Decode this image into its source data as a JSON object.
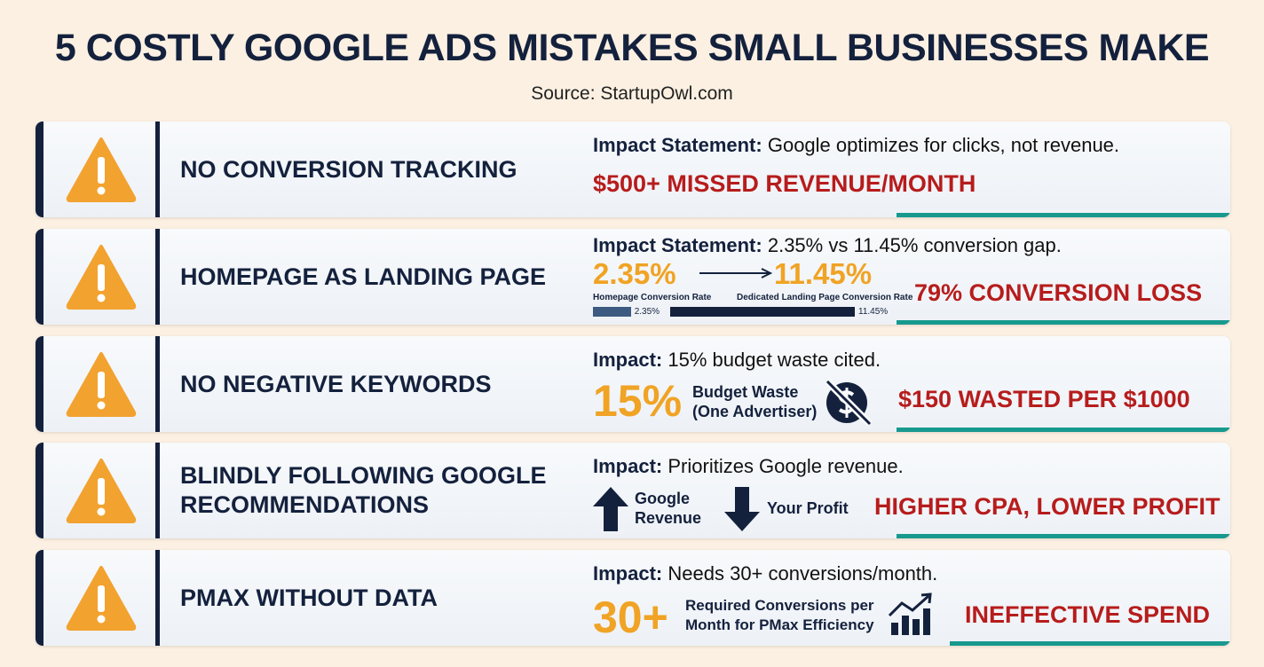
{
  "title": "5 COSTLY GOOGLE ADS MISTAKES SMALL BUSINESSES MAKE",
  "source": "Source: StartupOwl.com",
  "mistakes": [
    {
      "name": "NO CONVERSION TRACKING",
      "impact_label": "Impact Statement:",
      "impact_text": "Google optimizes for clicks, not revenue.",
      "result": "$500+ MISSED REVENUE/MONTH"
    },
    {
      "name": "HOMEPAGE AS LANDING PAGE",
      "impact_label": "Impact Statement:",
      "impact_text": "2.35% vs 11.45% conversion gap.",
      "from_value": "2.35%",
      "from_label": "Homepage Conversion Rate",
      "to_value": "11.45%",
      "to_label": "Dedicated Landing Page Conversion Rate",
      "bars": [
        {
          "value": 2.35,
          "label": "2.35%"
        },
        {
          "value": 11.45,
          "label": "11.45%"
        }
      ],
      "result": "79% CONVERSION LOSS"
    },
    {
      "name": "NO NEGATIVE KEYWORDS",
      "impact_label": "Impact:",
      "impact_text": "15% budget waste cited.",
      "big": "15%",
      "detail": [
        "Budget Waste",
        "(One Advertiser)"
      ],
      "result": "$150 WASTED PER $1000"
    },
    {
      "name": [
        "BLINDLY FOLLOWING GOOGLE",
        "RECOMMENDATIONS"
      ],
      "impact_label": "Impact:",
      "impact_text": "Prioritizes Google revenue.",
      "up_label": [
        "Google",
        "Revenue"
      ],
      "down_label": "Your Profit",
      "result": "HIGHER CPA, LOWER PROFIT"
    },
    {
      "name": "PMAX WITHOUT DATA",
      "impact_label": "Impact:",
      "impact_text": "Needs 30+ conversions/month.",
      "big": "30+",
      "detail": [
        "Required Conversions per",
        "Month for PMax Efficiency"
      ],
      "result": "INEFFECTIVE SPEND"
    }
  ]
}
